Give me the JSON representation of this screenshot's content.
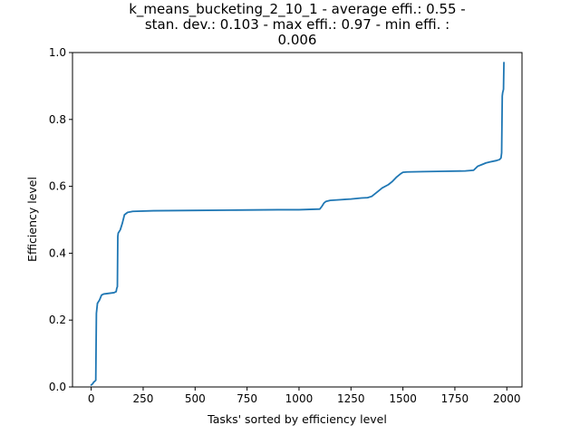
{
  "chart_data": {
    "type": "line",
    "title_lines": [
      "k_means_bucketing_2_10_1 - average effi.: 0.55 -",
      "stan. dev.: 0.103 - max effi.: 0.97 - min effi. :",
      "0.006"
    ],
    "xlabel": "Tasks' sorted by efficiency level",
    "ylabel": "Efficiency level",
    "xlim": [
      -90,
      2073
    ],
    "ylim": [
      0,
      1
    ],
    "xticks": [
      0,
      250,
      500,
      750,
      1000,
      1250,
      1500,
      1750,
      2000
    ],
    "yticks": [
      0.0,
      0.2,
      0.4,
      0.6,
      0.8,
      1.0
    ],
    "xtick_labels": [
      "0",
      "250",
      "500",
      "750",
      "1000",
      "1250",
      "1500",
      "1750",
      "2000"
    ],
    "ytick_labels": [
      "0.0",
      "0.2",
      "0.4",
      "0.6",
      "0.8",
      "1.0"
    ],
    "grid": false,
    "series": [
      {
        "color": "#1f77b4",
        "x": [
          0,
          8,
          10,
          22,
          25,
          30,
          40,
          50,
          60,
          110,
          120,
          123,
          126,
          128,
          130,
          140,
          150,
          160,
          175,
          200,
          300,
          500,
          700,
          900,
          1000,
          1100,
          1110,
          1120,
          1130,
          1150,
          1200,
          1250,
          1300,
          1330,
          1350,
          1380,
          1400,
          1430,
          1450,
          1470,
          1490,
          1500,
          1520,
          1600,
          1700,
          1800,
          1840,
          1860,
          1880,
          1900,
          1920,
          1950,
          1965,
          1972,
          1975,
          1978,
          1980,
          1982,
          1984,
          1986
        ],
        "y": [
          0.006,
          0.01,
          0.013,
          0.02,
          0.22,
          0.25,
          0.26,
          0.275,
          0.278,
          0.282,
          0.285,
          0.295,
          0.3,
          0.45,
          0.46,
          0.47,
          0.49,
          0.515,
          0.522,
          0.525,
          0.527,
          0.528,
          0.529,
          0.53,
          0.53,
          0.532,
          0.54,
          0.55,
          0.555,
          0.558,
          0.56,
          0.562,
          0.565,
          0.566,
          0.57,
          0.585,
          0.595,
          0.605,
          0.615,
          0.628,
          0.638,
          0.642,
          0.643,
          0.644,
          0.645,
          0.646,
          0.648,
          0.66,
          0.665,
          0.67,
          0.673,
          0.677,
          0.68,
          0.685,
          0.7,
          0.87,
          0.88,
          0.885,
          0.89,
          0.97
        ]
      }
    ]
  }
}
